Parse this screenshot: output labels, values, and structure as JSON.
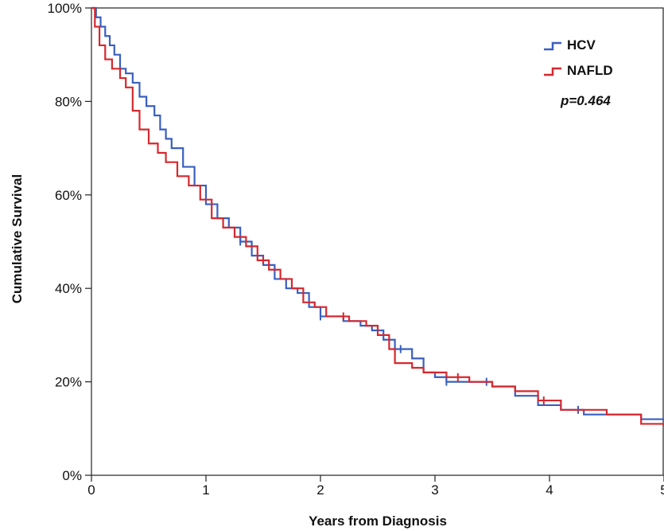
{
  "chart_data": {
    "type": "line",
    "step": true,
    "xlabel": "Years from Diagnosis",
    "ylabel": "Cumulative Survival",
    "xlim": [
      0,
      5
    ],
    "ylim": [
      0,
      100
    ],
    "x_ticks": [
      "0",
      "1",
      "2",
      "3",
      "4",
      "5"
    ],
    "y_ticks": [
      "0%",
      "20%",
      "40%",
      "60%",
      "80%",
      "100%"
    ],
    "grid": false,
    "legend_position": "top-right",
    "annotation": "p=0.464",
    "series": [
      {
        "name": "HCV",
        "color": "#3a5fbf",
        "points": [
          [
            0,
            100
          ],
          [
            0.04,
            98
          ],
          [
            0.08,
            96
          ],
          [
            0.12,
            94
          ],
          [
            0.16,
            92
          ],
          [
            0.2,
            90
          ],
          [
            0.25,
            87
          ],
          [
            0.3,
            86
          ],
          [
            0.36,
            84
          ],
          [
            0.42,
            81
          ],
          [
            0.48,
            79
          ],
          [
            0.55,
            77
          ],
          [
            0.6,
            74
          ],
          [
            0.65,
            72
          ],
          [
            0.7,
            70
          ],
          [
            0.8,
            66
          ],
          [
            0.9,
            62
          ],
          [
            1.0,
            58
          ],
          [
            1.1,
            55
          ],
          [
            1.2,
            53
          ],
          [
            1.3,
            50
          ],
          [
            1.4,
            47
          ],
          [
            1.5,
            45
          ],
          [
            1.6,
            42
          ],
          [
            1.7,
            40
          ],
          [
            1.8,
            39
          ],
          [
            1.9,
            36
          ],
          [
            2.0,
            34
          ],
          [
            2.2,
            33
          ],
          [
            2.35,
            32
          ],
          [
            2.45,
            31
          ],
          [
            2.55,
            29
          ],
          [
            2.65,
            27
          ],
          [
            2.8,
            25
          ],
          [
            2.9,
            22
          ],
          [
            3.0,
            21
          ],
          [
            3.1,
            20
          ],
          [
            3.3,
            20
          ],
          [
            3.5,
            19
          ],
          [
            3.7,
            17
          ],
          [
            3.9,
            15
          ],
          [
            4.1,
            14
          ],
          [
            4.3,
            13
          ],
          [
            4.5,
            13
          ],
          [
            4.8,
            12
          ],
          [
            5.0,
            11.5
          ]
        ],
        "censor_x": [
          1.3,
          2.0,
          2.7,
          3.1,
          3.45,
          4.25
        ]
      },
      {
        "name": "NAFLD",
        "color": "#d6282e",
        "points": [
          [
            0,
            100
          ],
          [
            0.03,
            96
          ],
          [
            0.07,
            92
          ],
          [
            0.12,
            89
          ],
          [
            0.18,
            87
          ],
          [
            0.25,
            85
          ],
          [
            0.3,
            83
          ],
          [
            0.36,
            78
          ],
          [
            0.42,
            74
          ],
          [
            0.5,
            71
          ],
          [
            0.58,
            69
          ],
          [
            0.65,
            67
          ],
          [
            0.75,
            64
          ],
          [
            0.85,
            62
          ],
          [
            0.95,
            59
          ],
          [
            1.05,
            55
          ],
          [
            1.15,
            53
          ],
          [
            1.25,
            51
          ],
          [
            1.35,
            49
          ],
          [
            1.45,
            46
          ],
          [
            1.55,
            44
          ],
          [
            1.65,
            42
          ],
          [
            1.75,
            40
          ],
          [
            1.85,
            37
          ],
          [
            1.95,
            36
          ],
          [
            2.05,
            34
          ],
          [
            2.25,
            33
          ],
          [
            2.4,
            32
          ],
          [
            2.5,
            30
          ],
          [
            2.6,
            27
          ],
          [
            2.65,
            24
          ],
          [
            2.8,
            23
          ],
          [
            2.9,
            22
          ],
          [
            3.1,
            21
          ],
          [
            3.3,
            20
          ],
          [
            3.5,
            19
          ],
          [
            3.7,
            18
          ],
          [
            3.9,
            16
          ],
          [
            4.1,
            14
          ],
          [
            4.3,
            14
          ],
          [
            4.5,
            13
          ],
          [
            4.8,
            11
          ],
          [
            5.0,
            10.5
          ]
        ],
        "censor_x": [
          1.5,
          2.2,
          3.2,
          3.95
        ]
      }
    ]
  }
}
